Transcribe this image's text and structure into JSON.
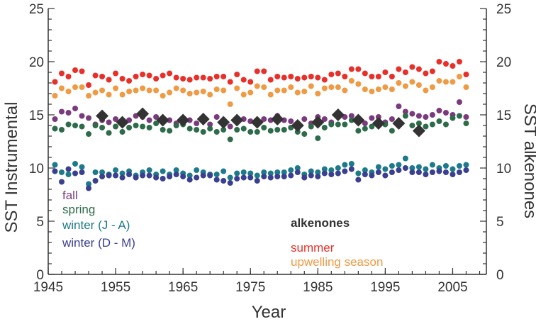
{
  "chart_data": {
    "type": "scatter",
    "title": "",
    "xlabel": "Year",
    "ylabel": "SST Instrumental",
    "ylabel_right": "SST alkenones",
    "xlim": [
      1945,
      2010
    ],
    "ylim": [
      0,
      25
    ],
    "y2lim": [
      0,
      25
    ],
    "x_ticks": [
      1945,
      1955,
      1965,
      1975,
      1985,
      1995,
      2005
    ],
    "y_ticks": [
      0,
      5,
      10,
      15,
      20,
      25
    ],
    "grid": false,
    "legend_position": "bottom-left and bottom-center",
    "series": [
      {
        "name": "summer",
        "color": "#e8302a",
        "marker": "circle",
        "x": [
          1946,
          1947,
          1948,
          1949,
          1950,
          1951,
          1952,
          1953,
          1954,
          1955,
          1956,
          1957,
          1958,
          1959,
          1960,
          1961,
          1962,
          1963,
          1964,
          1965,
          1966,
          1967,
          1968,
          1969,
          1970,
          1971,
          1972,
          1973,
          1974,
          1975,
          1976,
          1977,
          1978,
          1979,
          1980,
          1981,
          1982,
          1983,
          1984,
          1985,
          1986,
          1987,
          1988,
          1989,
          1990,
          1991,
          1992,
          1993,
          1994,
          1995,
          1996,
          1997,
          1998,
          1999,
          2000,
          2001,
          2002,
          2003,
          2004,
          2005,
          2006,
          2007
        ],
        "y": [
          18.1,
          18.9,
          18.6,
          19.2,
          19.1,
          17.8,
          18.7,
          18.6,
          18.3,
          18.9,
          18.4,
          18.2,
          18.6,
          18.8,
          18.7,
          18.4,
          18.7,
          18.9,
          18.5,
          18.4,
          18.3,
          18.5,
          18.5,
          18.4,
          18.6,
          18.6,
          18.1,
          18.8,
          18.3,
          18.1,
          19.1,
          19.1,
          18.3,
          18.6,
          18.5,
          18.6,
          18.4,
          18.5,
          18.6,
          18.5,
          18.3,
          18.8,
          18.9,
          18.6,
          19.3,
          19.3,
          18.9,
          18.6,
          18.6,
          19.0,
          18.6,
          19.3,
          19.0,
          19.5,
          19.3,
          18.9,
          19.1,
          20.0,
          19.8,
          19.6,
          20.0,
          18.8
        ]
      },
      {
        "name": "upwelling season",
        "color": "#ef9a45",
        "marker": "circle",
        "x": [
          1946,
          1947,
          1948,
          1949,
          1950,
          1951,
          1952,
          1953,
          1954,
          1955,
          1956,
          1957,
          1958,
          1959,
          1960,
          1961,
          1962,
          1963,
          1964,
          1965,
          1966,
          1967,
          1968,
          1969,
          1970,
          1971,
          1972,
          1973,
          1974,
          1975,
          1976,
          1977,
          1978,
          1979,
          1980,
          1981,
          1982,
          1983,
          1984,
          1985,
          1986,
          1987,
          1988,
          1989,
          1990,
          1991,
          1992,
          1993,
          1994,
          1995,
          1996,
          1997,
          1998,
          1999,
          2000,
          2001,
          2002,
          2003,
          2004,
          2005,
          2006,
          2007
        ],
        "y": [
          16.8,
          17.5,
          17.2,
          17.6,
          17.6,
          16.8,
          17.1,
          17.3,
          16.9,
          17.5,
          16.9,
          17.2,
          17.3,
          17.5,
          17.3,
          17.3,
          16.8,
          17.1,
          17.5,
          17.3,
          17.0,
          17.1,
          17.2,
          16.9,
          17.4,
          17.3,
          16.0,
          17.5,
          16.9,
          17.1,
          17.7,
          17.6,
          16.9,
          17.3,
          17.3,
          17.6,
          17.1,
          17.2,
          17.7,
          17.0,
          17.5,
          17.6,
          17.6,
          17.3,
          18.2,
          17.9,
          17.4,
          17.2,
          17.4,
          17.6,
          17.4,
          18.0,
          17.7,
          18.1,
          17.8,
          17.3,
          17.6,
          18.2,
          18.1,
          18.1,
          18.6,
          17.6
        ]
      },
      {
        "name": "fall",
        "color": "#7a3a7e",
        "marker": "circle",
        "x": [
          1946,
          1947,
          1948,
          1949,
          1950,
          1951,
          1952,
          1953,
          1954,
          1955,
          1956,
          1957,
          1958,
          1959,
          1960,
          1961,
          1962,
          1963,
          1964,
          1965,
          1966,
          1967,
          1968,
          1969,
          1970,
          1971,
          1972,
          1973,
          1974,
          1975,
          1976,
          1977,
          1978,
          1979,
          1980,
          1981,
          1982,
          1983,
          1984,
          1985,
          1986,
          1987,
          1988,
          1989,
          1990,
          1991,
          1992,
          1993,
          1994,
          1995,
          1996,
          1997,
          1998,
          1999,
          2000,
          2001,
          2002,
          2003,
          2004,
          2005,
          2006,
          2007
        ],
        "y": [
          14.6,
          15.3,
          15.2,
          15.6,
          14.9,
          14.7,
          14.1,
          14.5,
          14.3,
          14.6,
          14.1,
          14.5,
          14.9,
          14.8,
          14.5,
          14.8,
          14.4,
          14.5,
          14.2,
          14.7,
          14.5,
          14.2,
          14.5,
          14.1,
          14.8,
          14.2,
          13.9,
          14.5,
          14.6,
          14.4,
          14.2,
          14.6,
          14.5,
          14.9,
          14.5,
          14.4,
          14.2,
          14.6,
          14.2,
          14.8,
          14.6,
          14.3,
          15.0,
          14.8,
          14.9,
          14.4,
          14.2,
          14.7,
          14.8,
          14.3,
          14.6,
          15.8,
          15.3,
          15.1,
          14.9,
          14.8,
          15.0,
          15.4,
          15.2,
          15.0,
          16.2,
          14.8
        ]
      },
      {
        "name": "spring",
        "color": "#2e6b4a",
        "marker": "circle",
        "x": [
          1946,
          1947,
          1948,
          1949,
          1950,
          1951,
          1952,
          1953,
          1954,
          1955,
          1956,
          1957,
          1958,
          1959,
          1960,
          1961,
          1962,
          1963,
          1964,
          1965,
          1966,
          1967,
          1968,
          1969,
          1970,
          1971,
          1972,
          1973,
          1974,
          1975,
          1976,
          1977,
          1978,
          1979,
          1980,
          1981,
          1982,
          1983,
          1984,
          1985,
          1986,
          1987,
          1988,
          1989,
          1990,
          1991,
          1992,
          1993,
          1994,
          1995,
          1996,
          1997,
          1998,
          1999,
          2000,
          2001,
          2002,
          2003,
          2004,
          2005,
          2006,
          2007
        ],
        "y": [
          13.7,
          13.6,
          14.1,
          14.0,
          13.9,
          13.2,
          14.0,
          13.8,
          13.3,
          13.9,
          13.4,
          13.8,
          14.0,
          13.9,
          13.8,
          14.2,
          13.6,
          13.5,
          14.0,
          14.1,
          13.7,
          13.6,
          13.4,
          13.7,
          13.4,
          13.6,
          12.7,
          13.6,
          13.7,
          13.4,
          13.4,
          13.8,
          13.5,
          13.6,
          13.6,
          13.8,
          13.4,
          13.2,
          13.9,
          12.8,
          13.8,
          14.1,
          14.1,
          14.1,
          14.5,
          13.5,
          13.7,
          13.9,
          14.0,
          14.1,
          13.5,
          14.0,
          14.9,
          14.0,
          14.2,
          13.9,
          14.1,
          14.4,
          14.1,
          14.7,
          14.9,
          14.2
        ]
      },
      {
        "name": "winter (J - A)",
        "color": "#1d7a8a",
        "marker": "circle",
        "x": [
          1946,
          1947,
          1948,
          1949,
          1950,
          1951,
          1952,
          1953,
          1954,
          1955,
          1956,
          1957,
          1958,
          1959,
          1960,
          1961,
          1962,
          1963,
          1964,
          1965,
          1966,
          1967,
          1968,
          1969,
          1970,
          1971,
          1972,
          1973,
          1974,
          1975,
          1976,
          1977,
          1978,
          1979,
          1980,
          1981,
          1982,
          1983,
          1984,
          1985,
          1986,
          1987,
          1988,
          1989,
          1990,
          1991,
          1992,
          1993,
          1994,
          1995,
          1996,
          1997,
          1998,
          1999,
          2000,
          2001,
          2002,
          2003,
          2004,
          2005,
          2006,
          2007
        ],
        "y": [
          10.3,
          9.6,
          9.4,
          10.4,
          10.1,
          8.5,
          9.6,
          9.6,
          9.4,
          9.8,
          9.5,
          9.7,
          9.3,
          9.6,
          9.8,
          9.4,
          9.7,
          9.4,
          9.8,
          9.5,
          9.3,
          9.8,
          9.6,
          9.4,
          9.4,
          9.7,
          9.1,
          9.5,
          9.6,
          9.5,
          9.3,
          9.6,
          9.5,
          9.6,
          9.6,
          9.8,
          10.0,
          9.4,
          9.7,
          9.6,
          9.9,
          9.8,
          10.0,
          10.3,
          10.4,
          9.5,
          9.8,
          9.6,
          10.1,
          9.9,
          10.2,
          10.3,
          10.9,
          10.0,
          10.1,
          9.9,
          10.3,
          10.0,
          10.2,
          9.9,
          10.2,
          10.3
        ]
      },
      {
        "name": "winter (D - M)",
        "color": "#3a3f8f",
        "marker": "circle",
        "x": [
          1946,
          1947,
          1948,
          1949,
          1950,
          1951,
          1952,
          1953,
          1954,
          1955,
          1956,
          1957,
          1958,
          1959,
          1960,
          1961,
          1962,
          1963,
          1964,
          1965,
          1966,
          1967,
          1968,
          1969,
          1970,
          1971,
          1972,
          1973,
          1974,
          1975,
          1976,
          1977,
          1978,
          1979,
          1980,
          1981,
          1982,
          1983,
          1984,
          1985,
          1986,
          1987,
          1988,
          1989,
          1990,
          1991,
          1992,
          1993,
          1994,
          1995,
          1996,
          1997,
          1998,
          1999,
          2000,
          2001,
          2002,
          2003,
          2004,
          2005,
          2006,
          2007
        ],
        "y": [
          9.7,
          8.7,
          9.9,
          9.5,
          9.6,
          8.1,
          8.8,
          9.2,
          9.3,
          9.3,
          9.1,
          9.4,
          9.1,
          9.3,
          9.3,
          9.1,
          9.0,
          9.2,
          9.4,
          9.2,
          8.9,
          9.1,
          9.3,
          9.3,
          8.9,
          8.8,
          8.6,
          9.0,
          9.1,
          9.1,
          8.8,
          9.2,
          9.1,
          9.2,
          9.2,
          9.3,
          9.6,
          9.1,
          9.3,
          9.2,
          9.5,
          9.4,
          9.5,
          9.7,
          9.9,
          8.9,
          9.4,
          9.3,
          9.6,
          9.3,
          9.6,
          9.8,
          10.0,
          9.6,
          9.6,
          9.4,
          9.6,
          9.7,
          9.6,
          9.4,
          9.6,
          9.8
        ]
      },
      {
        "name": "alkenones",
        "color": "#333333",
        "marker": "diamond",
        "axis": "right",
        "x": [
          1953,
          1956,
          1959,
          1962,
          1965,
          1968,
          1971,
          1973,
          1976,
          1979,
          1982,
          1985,
          1988,
          1991,
          1994,
          1997,
          2000
        ],
        "y": [
          14.9,
          14.3,
          15.1,
          14.5,
          14.5,
          14.6,
          14.3,
          14.5,
          14.3,
          14.6,
          14.0,
          14.3,
          15.0,
          14.5,
          14.2,
          14.2,
          13.5
        ]
      }
    ],
    "legend": {
      "left": [
        "fall",
        "spring",
        "winter (J - A)",
        "winter (D - M)"
      ],
      "center": [
        "alkenones",
        "summer",
        "upwelling season"
      ]
    }
  }
}
